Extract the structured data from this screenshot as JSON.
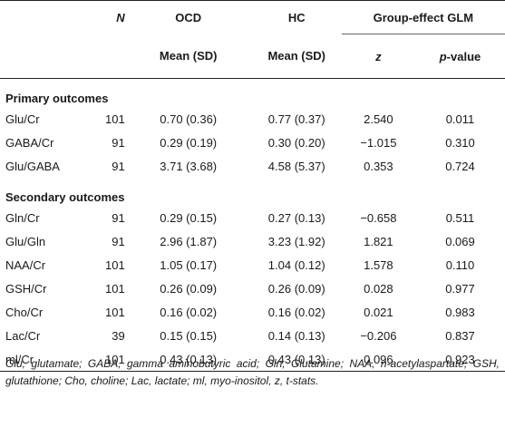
{
  "header": {
    "n_label": "N",
    "ocd_label": "OCD",
    "hc_label": "HC",
    "glm_label": "Group-effect GLM",
    "ocd_sub": "Mean (SD)",
    "hc_sub": "Mean (SD)",
    "z_label": "z",
    "p_label": "p-value",
    "p_label_italic": "p",
    "p_label_rest": "-value"
  },
  "sections": {
    "primary": "Primary outcomes",
    "secondary": "Secondary outcomes"
  },
  "primary_rows": [
    {
      "label": "Glu/Cr",
      "n": "101",
      "ocd": "0.70 (0.36)",
      "hc": "0.77 (0.37)",
      "z": "2.540",
      "p": "0.011"
    },
    {
      "label": "GABA/Cr",
      "n": "91",
      "ocd": "0.29 (0.19)",
      "hc": "0.30 (0.20)",
      "z": "−1.015",
      "p": "0.310"
    },
    {
      "label": "Glu/GABA",
      "n": "91",
      "ocd": "3.71 (3.68)",
      "hc": "4.58 (5.37)",
      "z": "0.353",
      "p": "0.724"
    }
  ],
  "secondary_rows": [
    {
      "label": "Gln/Cr",
      "n": "91",
      "ocd": "0.29 (0.15)",
      "hc": "0.27 (0.13)",
      "z": "−0.658",
      "p": "0.511"
    },
    {
      "label": "Glu/Gln",
      "n": "91",
      "ocd": "2.96 (1.87)",
      "hc": "3.23 (1.92)",
      "z": "1.821",
      "p": "0.069"
    },
    {
      "label": "NAA/Cr",
      "n": "101",
      "ocd": "1.05 (0.17)",
      "hc": "1.04 (0.12)",
      "z": "1.578",
      "p": "0.110"
    },
    {
      "label": "GSH/Cr",
      "n": "101",
      "ocd": "0.26 (0.09)",
      "hc": "0.26 (0.09)",
      "z": "0.028",
      "p": "0.977"
    },
    {
      "label": "Cho/Cr",
      "n": "101",
      "ocd": "0.16 (0.02)",
      "hc": "0.16 (0.02)",
      "z": "0.021",
      "p": "0.983"
    },
    {
      "label": "Lac/Cr",
      "n": "39",
      "ocd": "0.15 (0.15)",
      "hc": "0.14 (0.13)",
      "z": "−0.206",
      "p": "0.837"
    },
    {
      "label": "ml/Cr",
      "n": "101",
      "ocd": "0.43 (0.13)",
      "hc": "0.43 (0.13)",
      "z": "0.096",
      "p": "0.923"
    }
  ],
  "footnote": "Glu, glutamate; GABA, gamma aminobutyric acid; Gln, Glutamine; NAA, n-acetylaspartate; GSH, glutathione; Cho, choline; Lac, lactate; ml, myo-inositol, z, t-stats."
}
